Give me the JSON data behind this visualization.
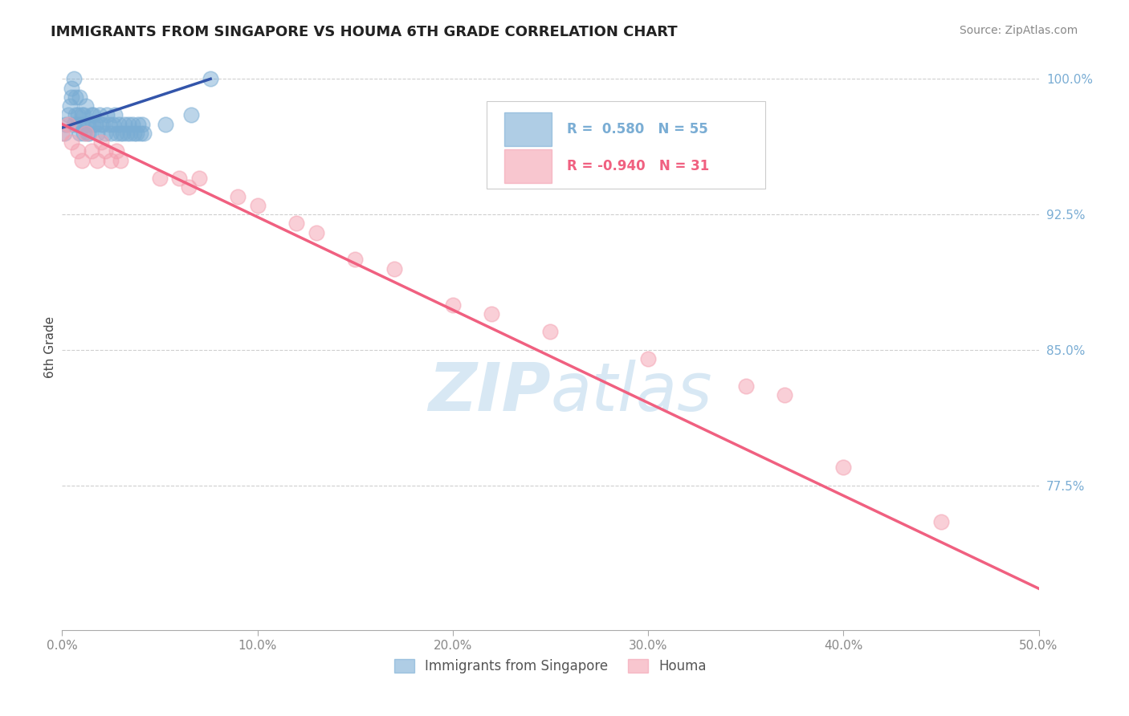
{
  "title": "IMMIGRANTS FROM SINGAPORE VS HOUMA 6TH GRADE CORRELATION CHART",
  "source": "Source: ZipAtlas.com",
  "ylabel": "6th Grade",
  "xlim": [
    0.0,
    0.5
  ],
  "ylim": [
    0.695,
    1.008
  ],
  "yticks": [
    0.775,
    0.85,
    0.925,
    1.0
  ],
  "ytick_labels": [
    "77.5%",
    "85.0%",
    "92.5%",
    "100.0%"
  ],
  "xticks": [
    0.0,
    0.1,
    0.2,
    0.3,
    0.4,
    0.5
  ],
  "xtick_labels": [
    "0.0%",
    "10.0%",
    "20.0%",
    "30.0%",
    "40.0%",
    "50.0%"
  ],
  "blue_R": 0.58,
  "blue_N": 55,
  "pink_R": -0.94,
  "pink_N": 31,
  "blue_color": "#7AADD4",
  "pink_color": "#F4A0B0",
  "blue_line_color": "#3355AA",
  "pink_line_color": "#F06080",
  "watermark_color": "#C8DFF0",
  "background_color": "#FFFFFF",
  "blue_scatter_x": [
    0.002,
    0.003,
    0.004,
    0.005,
    0.005,
    0.006,
    0.006,
    0.007,
    0.007,
    0.008,
    0.008,
    0.009,
    0.009,
    0.01,
    0.01,
    0.011,
    0.011,
    0.012,
    0.012,
    0.013,
    0.013,
    0.014,
    0.015,
    0.016,
    0.016,
    0.017,
    0.018,
    0.019,
    0.02,
    0.021,
    0.022,
    0.023,
    0.024,
    0.025,
    0.026,
    0.027,
    0.028,
    0.029,
    0.03,
    0.031,
    0.032,
    0.033,
    0.034,
    0.035,
    0.036,
    0.037,
    0.038,
    0.039,
    0.04,
    0.041,
    0.042,
    0.053,
    0.066,
    0.076,
    0.001
  ],
  "blue_scatter_y": [
    0.975,
    0.98,
    0.985,
    0.99,
    0.995,
    1.0,
    0.975,
    0.98,
    0.99,
    0.975,
    0.98,
    0.97,
    0.99,
    0.975,
    0.98,
    0.97,
    0.98,
    0.975,
    0.985,
    0.97,
    0.975,
    0.97,
    0.98,
    0.975,
    0.98,
    0.975,
    0.97,
    0.98,
    0.975,
    0.975,
    0.97,
    0.98,
    0.975,
    0.97,
    0.975,
    0.98,
    0.97,
    0.975,
    0.97,
    0.97,
    0.975,
    0.97,
    0.975,
    0.97,
    0.975,
    0.97,
    0.97,
    0.975,
    0.97,
    0.975,
    0.97,
    0.975,
    0.98,
    1.0,
    0.97
  ],
  "pink_scatter_x": [
    0.0,
    0.003,
    0.005,
    0.008,
    0.01,
    0.012,
    0.015,
    0.018,
    0.02,
    0.022,
    0.025,
    0.028,
    0.03,
    0.05,
    0.06,
    0.065,
    0.07,
    0.09,
    0.1,
    0.12,
    0.13,
    0.15,
    0.17,
    0.2,
    0.22,
    0.25,
    0.3,
    0.35,
    0.37,
    0.4,
    0.45
  ],
  "pink_scatter_y": [
    0.97,
    0.975,
    0.965,
    0.96,
    0.955,
    0.97,
    0.96,
    0.955,
    0.965,
    0.96,
    0.955,
    0.96,
    0.955,
    0.945,
    0.945,
    0.94,
    0.945,
    0.935,
    0.93,
    0.92,
    0.915,
    0.9,
    0.895,
    0.875,
    0.87,
    0.86,
    0.845,
    0.83,
    0.825,
    0.785,
    0.755
  ],
  "blue_trendline_x": [
    0.0,
    0.076
  ],
  "blue_trendline_y": [
    0.973,
    1.0
  ],
  "pink_trendline_x": [
    0.0,
    0.5
  ],
  "pink_trendline_y": [
    0.975,
    0.718
  ]
}
